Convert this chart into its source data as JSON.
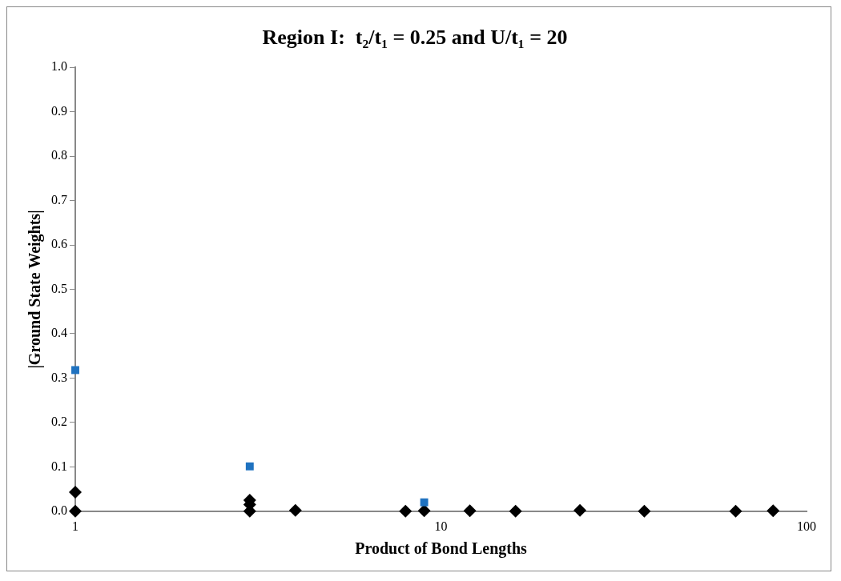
{
  "chart_data": {
    "type": "scatter",
    "title": "Region I:  t₂/t₁ = 0.25 and U/t₁ = 20",
    "xlabel": "Product of Bond Lengths",
    "ylabel": "|Ground State Weights|",
    "log": "x",
    "grid": false,
    "legend": false,
    "xlim": [
      1,
      100
    ],
    "xticks": [
      1,
      10,
      100
    ],
    "ylim": [
      0,
      1
    ],
    "yticks": [
      {
        "value": 0,
        "label": "0.0"
      },
      {
        "value": 0.1,
        "label": "0.1"
      },
      {
        "value": 0.2,
        "label": "0.2"
      },
      {
        "value": 0.3,
        "label": "0.3"
      },
      {
        "value": 0.4,
        "label": "0.4"
      },
      {
        "value": 0.5,
        "label": "0.5"
      },
      {
        "value": 0.6,
        "label": "0.6"
      },
      {
        "value": 0.7,
        "label": "0.7"
      },
      {
        "value": 0.8,
        "label": "0.8"
      },
      {
        "value": 0.9,
        "label": "0.9"
      },
      {
        "value": 1,
        "label": "1.0"
      }
    ],
    "series": [
      {
        "color": "#1f72c0",
        "marker": "square",
        "x": [
          1,
          3,
          9
        ],
        "values": [
          0.318,
          0.101,
          0.02
        ]
      },
      {
        "color": "#000000",
        "marker": "diamond",
        "x": [
          1,
          1,
          3,
          3,
          3,
          4,
          8,
          9,
          12,
          16,
          24,
          36,
          64,
          81
        ],
        "values": [
          0.043,
          0,
          0.025,
          0.015,
          0,
          0.002,
          0,
          0.001,
          0.001,
          0,
          0.002,
          0,
          0,
          0.001
        ]
      }
    ]
  }
}
